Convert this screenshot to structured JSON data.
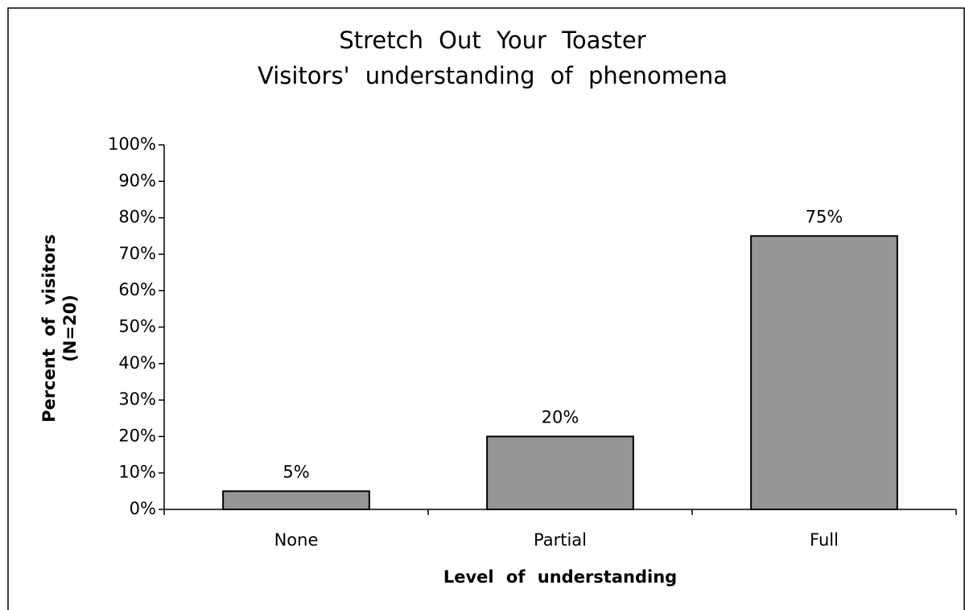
{
  "chart_data": {
    "type": "bar",
    "title": "Stretch Out Your Toaster",
    "subtitle": "Visitors' understanding of phenomena",
    "xlabel": "Level of understanding",
    "ylabel": [
      "Percent of visitors",
      "(N=20)"
    ],
    "categories": [
      "None",
      "Partial",
      "Full"
    ],
    "values": [
      5,
      20,
      75
    ],
    "value_labels": [
      "5%",
      "20%",
      "75%"
    ],
    "color": "#969696",
    "ylim": [
      0,
      100
    ],
    "yticks": [
      {
        "value": 0,
        "label": "0%"
      },
      {
        "value": 10,
        "label": "10%"
      },
      {
        "value": 20,
        "label": "20%"
      },
      {
        "value": 30,
        "label": "30%"
      },
      {
        "value": 40,
        "label": "40%"
      },
      {
        "value": 50,
        "label": "50%"
      },
      {
        "value": 60,
        "label": "60%"
      },
      {
        "value": 70,
        "label": "70%"
      },
      {
        "value": 80,
        "label": "80%"
      },
      {
        "value": 90,
        "label": "90%"
      },
      {
        "value": 100,
        "label": "100%"
      }
    ],
    "grid": false
  }
}
